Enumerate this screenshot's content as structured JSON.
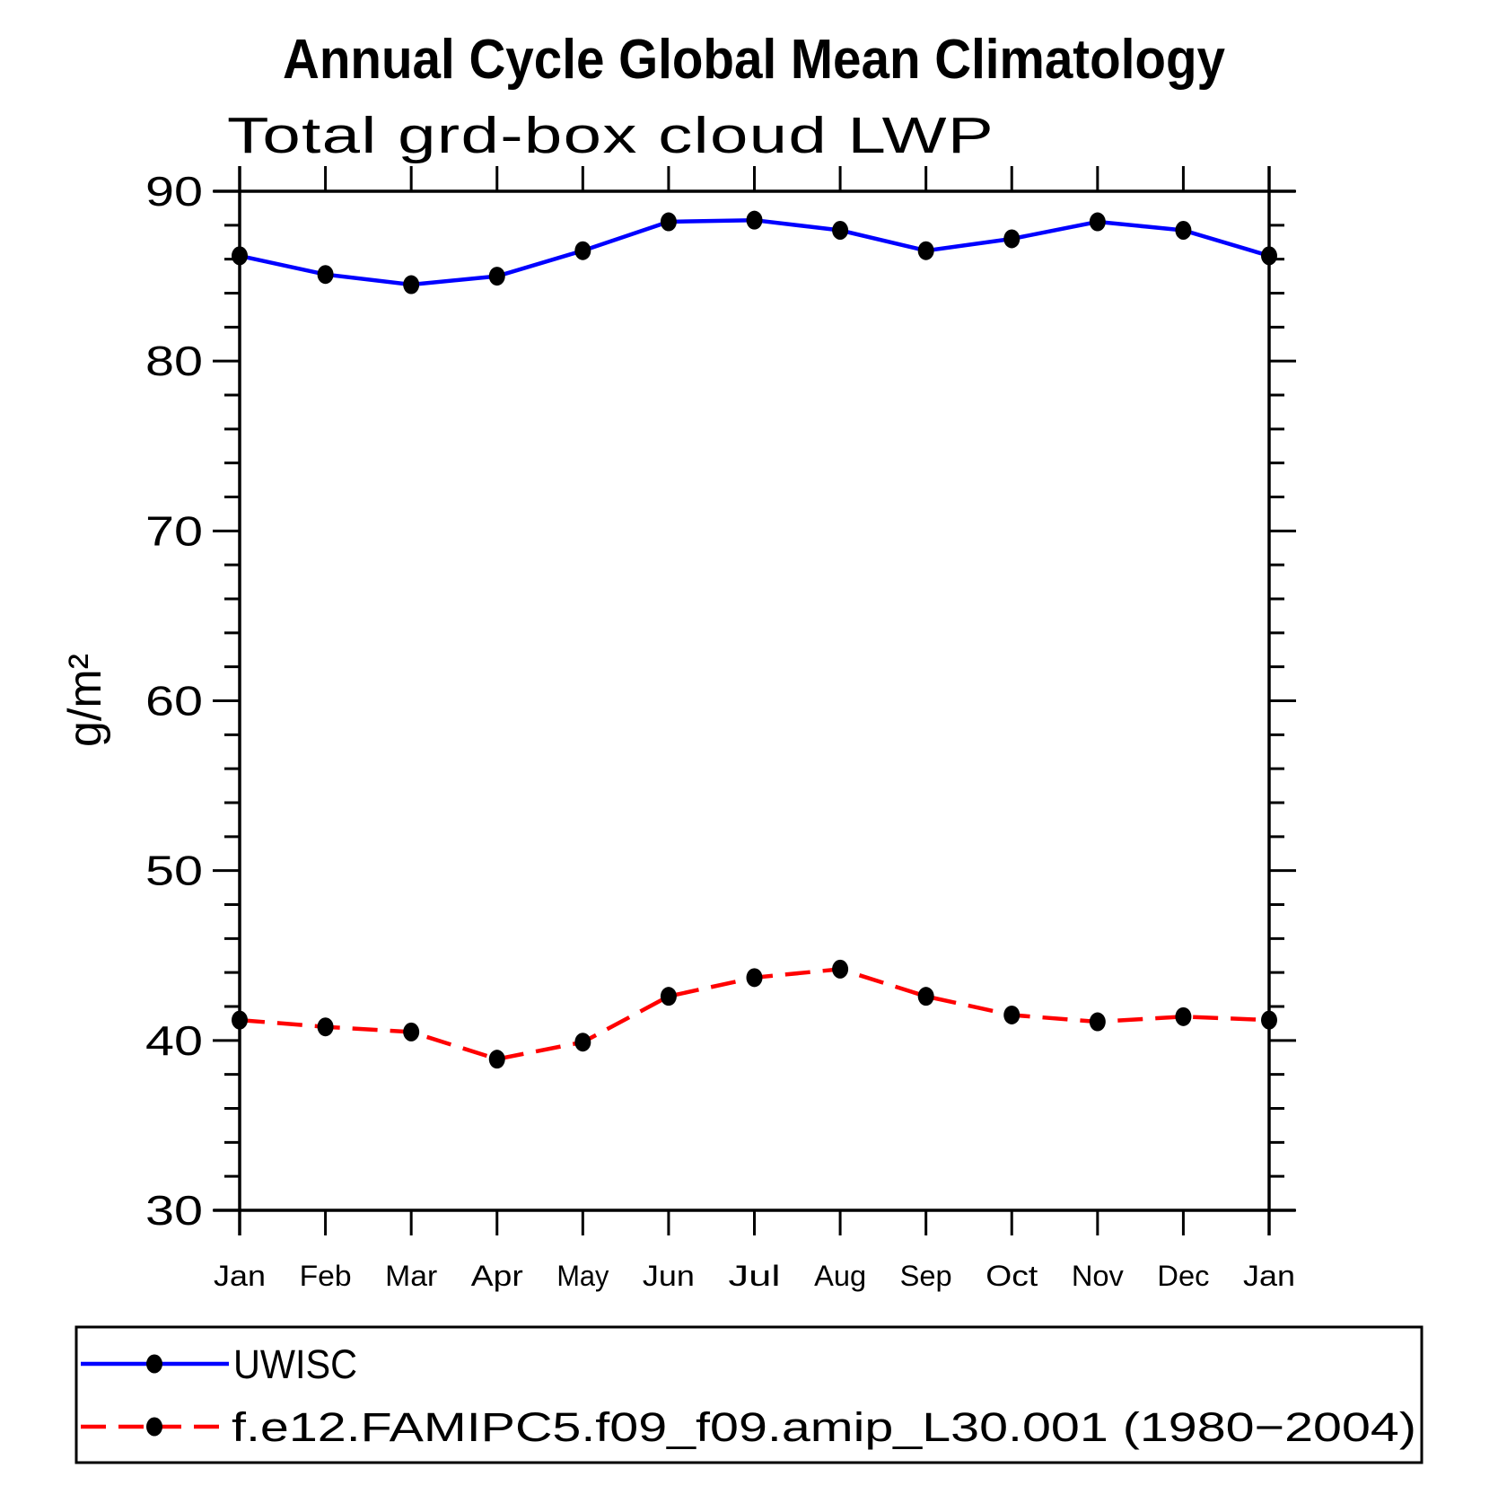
{
  "page": {
    "background_color": "#ffffff",
    "text_color": "#000000"
  },
  "chart_data": {
    "type": "line",
    "title": "Annual Cycle Global Mean Climatology",
    "subtitle": "Total grd-box cloud LWP",
    "ylabel": "g/m²",
    "xlabel": "",
    "x_tick_labels": [
      "Jan",
      "Feb",
      "Mar",
      "Apr",
      "May",
      "Jun",
      "Jul",
      "Aug",
      "Sep",
      "Oct",
      "Nov",
      "Dec",
      "Jan"
    ],
    "ylim": [
      30,
      90
    ],
    "y_major_ticks": [
      30,
      40,
      50,
      60,
      70,
      80,
      90
    ],
    "y_minor_step": 2,
    "grid": "off",
    "legend_position": "bottom",
    "series": [
      {
        "name": "UWISC",
        "color": "#0000ff",
        "line_style": "solid",
        "marker": "filled-circle",
        "marker_color": "#000000",
        "values": [
          86.2,
          85.1,
          84.5,
          85.0,
          86.5,
          88.2,
          88.3,
          87.7,
          86.5,
          87.2,
          88.2,
          87.7,
          86.2
        ]
      },
      {
        "name": "f.e12.FAMIPC5.f09_f09.amip_L30.001 (1980−2004)",
        "color": "#ff0000",
        "line_style": "dashed",
        "marker": "filled-circle",
        "marker_color": "#000000",
        "values": [
          41.2,
          40.8,
          40.5,
          38.9,
          39.9,
          42.6,
          43.7,
          44.2,
          42.6,
          41.5,
          41.1,
          41.4,
          41.2
        ]
      }
    ]
  }
}
